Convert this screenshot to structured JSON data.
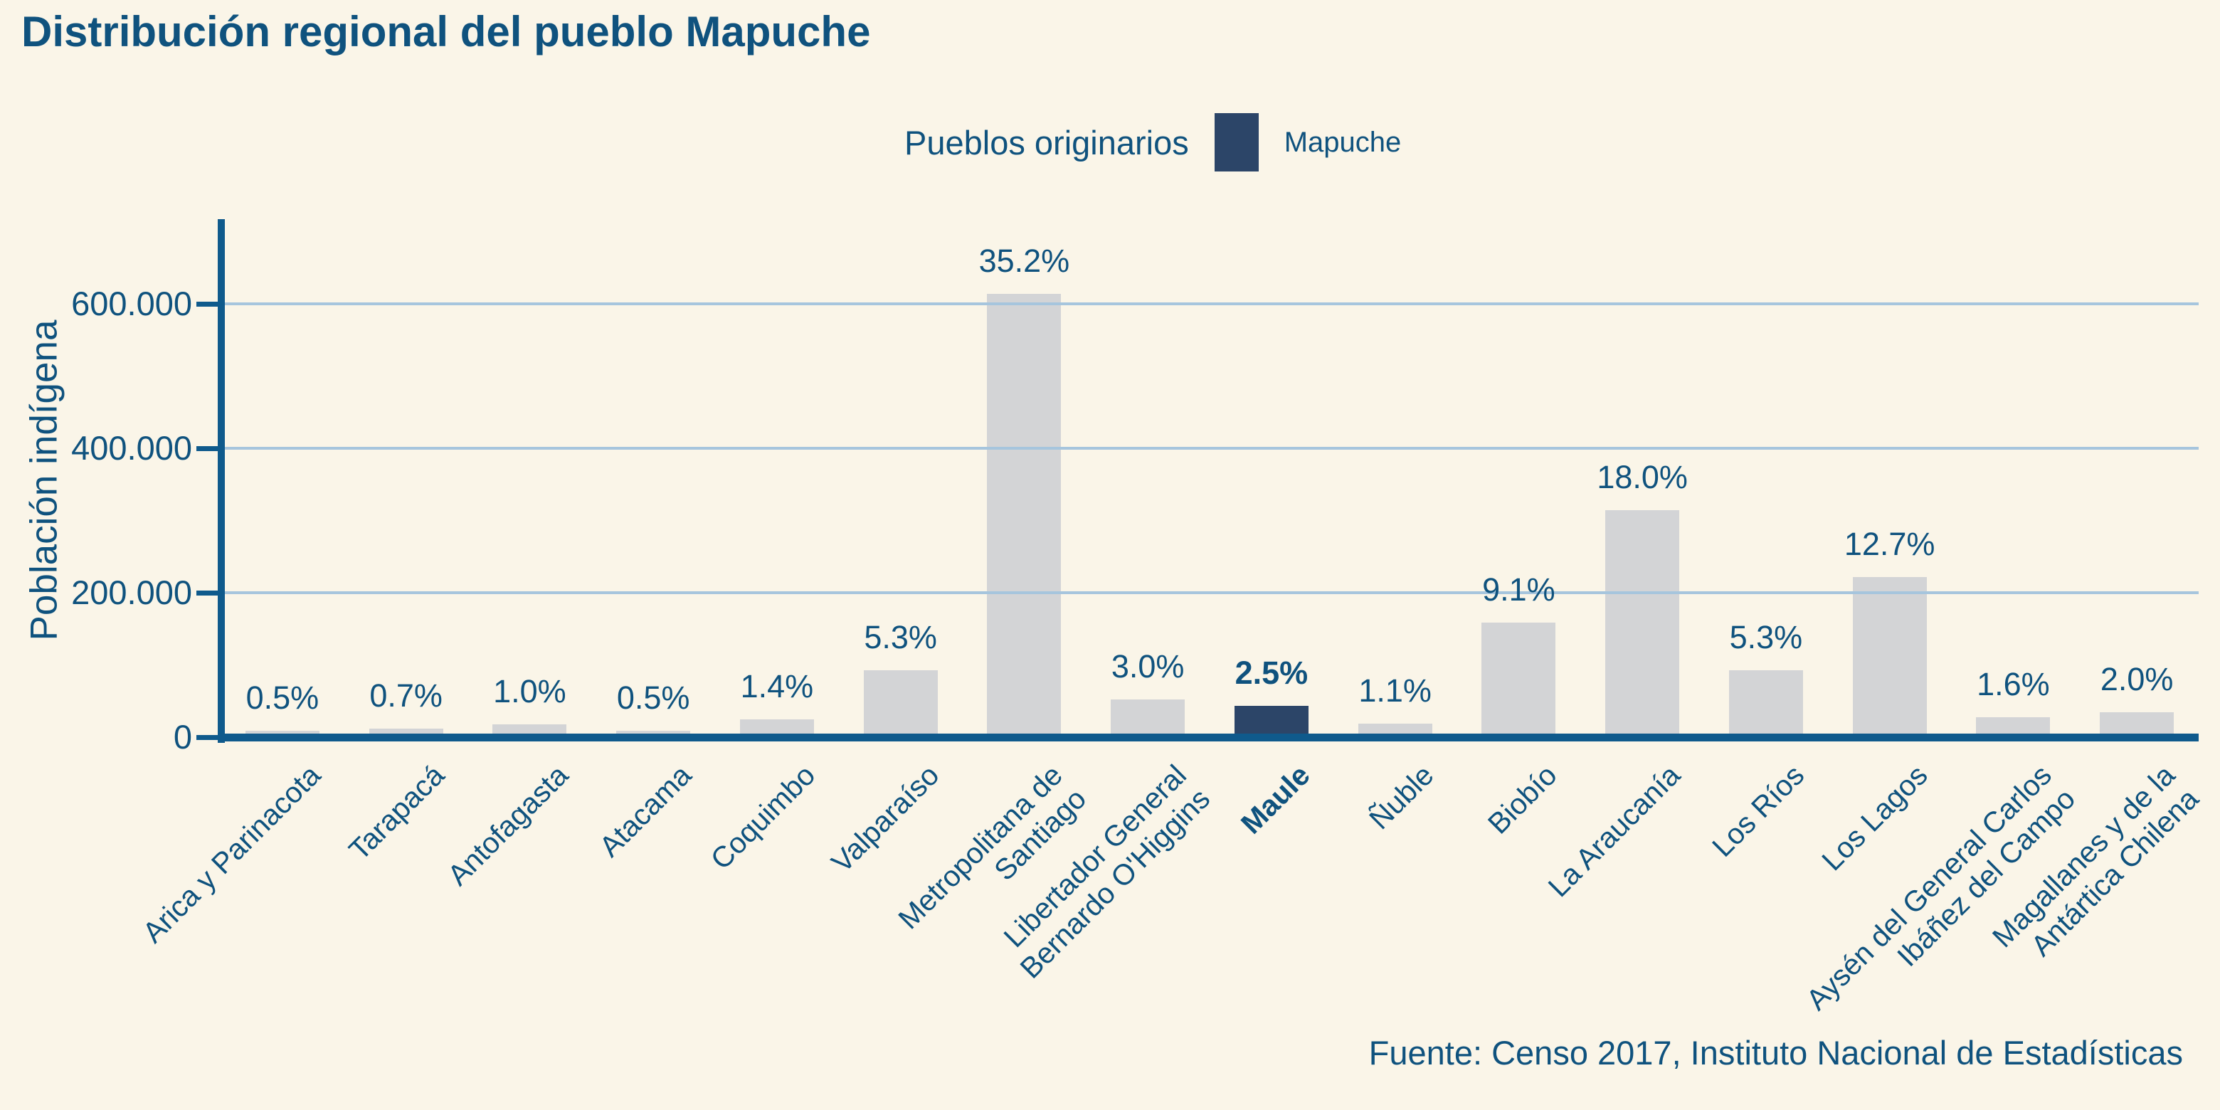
{
  "title": "Distribución regional del pueblo Mapuche",
  "legend": {
    "group_label": "Pueblos originarios",
    "series_label": "Mapuche"
  },
  "footer": {
    "source": "Fuente: Censo 2017, Instituto Nacional de Estadísticas"
  },
  "colors": {
    "background": "#FAF5E8",
    "text_blue": "#0F527E",
    "axis_blue": "#0F5A8C",
    "gridline": "#A6C5DD",
    "bar_gray": "#D3D4D6",
    "bar_highlight": "#2C4568"
  },
  "chart_data": {
    "type": "bar",
    "title": "Distribución regional del pueblo Mapuche",
    "xlabel": "",
    "ylabel": "Población indígena",
    "ylim": [
      0,
      715000
    ],
    "yticks": [
      0,
      200000,
      400000,
      600000
    ],
    "ytick_labels": [
      "0",
      "200.000",
      "400.000",
      "600.000"
    ],
    "grid": "horizontal",
    "legend_position": "top-center",
    "categories": [
      "Arica y Parinacota",
      "Tarapacá",
      "Antofagasta",
      "Atacama",
      "Coquimbo",
      "Valparaíso",
      "Metropolitana de\nSantiago",
      "Libertador General\nBernardo O'Higgins",
      "Maule",
      "Ñuble",
      "Biobío",
      "La Araucanía",
      "Los Ríos",
      "Los Lagos",
      "Aysén del General Carlos\nIbáñez del Campo",
      "Magallanes y de la\nAntártica Chilena"
    ],
    "values": [
      8700,
      12200,
      17500,
      8700,
      24400,
      92500,
      614000,
      52400,
      43600,
      19200,
      158800,
      314100,
      92500,
      221600,
      27900,
      34900
    ],
    "percent_labels": [
      "0.5%",
      "0.7%",
      "1.0%",
      "0.5%",
      "1.4%",
      "5.3%",
      "35.2%",
      "3.0%",
      "2.5%",
      "1.1%",
      "9.1%",
      "18.0%",
      "5.3%",
      "12.7%",
      "1.6%",
      "2.0%"
    ],
    "highlighted_category": "Maule",
    "source": "Fuente: Censo 2017, Instituto Nacional de Estadísticas"
  }
}
